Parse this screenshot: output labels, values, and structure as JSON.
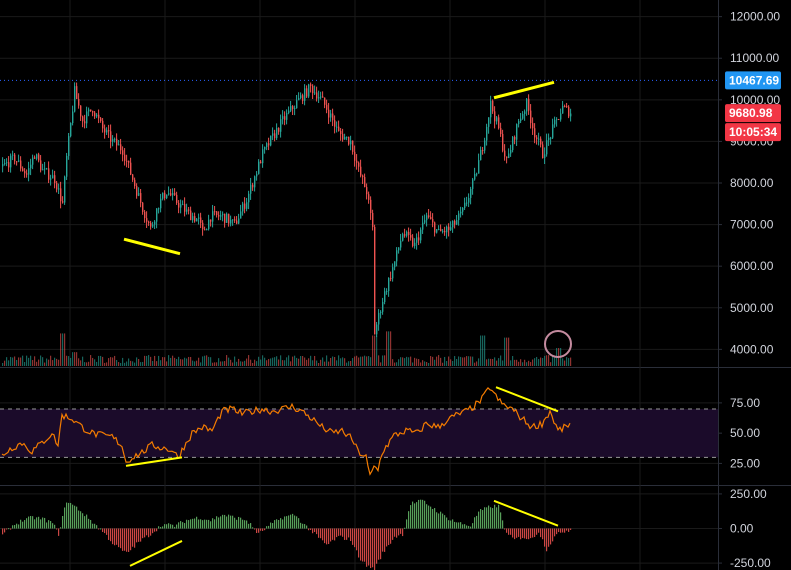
{
  "colors": {
    "background": "#000000",
    "grid": "#1a1a1a",
    "divider": "#2a2e39",
    "up": "#26a69a",
    "down": "#ef5350",
    "high_line": "#2962ff",
    "high_tag": "#2196f3",
    "price_tag": "#f23645",
    "rsi_line": "#f57c00",
    "rsi_band": "#1b0b2a",
    "rsi_guide": "#9a9a9a",
    "macd_up": "#66bb6a",
    "macd_down": "#ef5350",
    "annotation": "#ffff00",
    "circle": "#c48b9f",
    "axis_text": "#d1d4dc"
  },
  "price_tags": {
    "high": "10467.69",
    "last": "9680.98",
    "countdown": "10:05:34"
  },
  "chart_data": [
    {
      "type": "candlestick",
      "title": "",
      "ylim": [
        3600,
        12400
      ],
      "y_ticks": [
        "12000.00",
        "11000.00",
        "10000.00",
        "9000.00",
        "8000.00",
        "7000.00",
        "6000.00",
        "5000.00",
        "4000.00"
      ],
      "y_tick_values": [
        12000,
        11000,
        10000,
        9000,
        8000,
        7000,
        6000,
        5000,
        4000
      ],
      "high_marker": 10467.69,
      "last_price": 9680.98,
      "close_path": [
        [
          0,
          8400
        ],
        [
          6,
          8600
        ],
        [
          12,
          8200
        ],
        [
          16,
          8700
        ],
        [
          20,
          8300
        ],
        [
          26,
          8100
        ],
        [
          30,
          7500
        ],
        [
          32,
          8600
        ],
        [
          36,
          10200
        ],
        [
          40,
          9500
        ],
        [
          45,
          9800
        ],
        [
          50,
          9300
        ],
        [
          55,
          9000
        ],
        [
          60,
          8800
        ],
        [
          65,
          8100
        ],
        [
          70,
          7400
        ],
        [
          74,
          6900
        ],
        [
          78,
          7500
        ],
        [
          82,
          7800
        ],
        [
          88,
          7500
        ],
        [
          92,
          7300
        ],
        [
          98,
          7100
        ],
        [
          100,
          6800
        ],
        [
          104,
          7200
        ],
        [
          110,
          7200
        ],
        [
          116,
          7000
        ],
        [
          122,
          7600
        ],
        [
          130,
          8700
        ],
        [
          140,
          9500
        ],
        [
          148,
          10000
        ],
        [
          154,
          10300
        ],
        [
          158,
          10100
        ],
        [
          162,
          9800
        ],
        [
          168,
          9200
        ],
        [
          174,
          9000
        ],
        [
          178,
          8300
        ],
        [
          182,
          7800
        ],
        [
          185,
          6900
        ],
        [
          186,
          4400
        ],
        [
          190,
          5200
        ],
        [
          196,
          6100
        ],
        [
          200,
          6800
        ],
        [
          206,
          6500
        ],
        [
          212,
          7200
        ],
        [
          218,
          6800
        ],
        [
          224,
          6900
        ],
        [
          230,
          7300
        ],
        [
          236,
          8100
        ],
        [
          240,
          8900
        ],
        [
          244,
          9900
        ],
        [
          248,
          9300
        ],
        [
          252,
          8500
        ],
        [
          258,
          9500
        ],
        [
          262,
          9900
        ],
        [
          266,
          9200
        ],
        [
          270,
          8700
        ],
        [
          276,
          9400
        ],
        [
          280,
          9800
        ],
        [
          284,
          9700
        ]
      ],
      "volume_spikes": [
        [
          30,
          4550
        ],
        [
          36,
          4100
        ],
        [
          186,
          4500
        ],
        [
          193,
          4600
        ],
        [
          240,
          4500
        ],
        [
          252,
          4450
        ],
        [
          278,
          4200
        ]
      ],
      "volume_base": 4200,
      "annotations": [
        {
          "kind": "line",
          "from": [
            61,
            6650
          ],
          "to": [
            89,
            6300
          ]
        },
        {
          "kind": "line",
          "from": [
            246,
            10050
          ],
          "to": [
            276,
            10420
          ]
        },
        {
          "kind": "circle",
          "at": [
            278,
            4130
          ]
        }
      ]
    },
    {
      "type": "line",
      "title": "",
      "ylim": [
        8,
        103
      ],
      "y_ticks": [
        "75.00",
        "50.00",
        "25.00"
      ],
      "y_tick_values": [
        75,
        50,
        25
      ],
      "band": [
        30,
        70
      ],
      "values_path": [
        [
          0,
          32
        ],
        [
          5,
          38
        ],
        [
          10,
          42
        ],
        [
          15,
          35
        ],
        [
          20,
          42
        ],
        [
          25,
          50
        ],
        [
          28,
          40
        ],
        [
          30,
          65
        ],
        [
          35,
          62
        ],
        [
          40,
          55
        ],
        [
          45,
          50
        ],
        [
          50,
          48
        ],
        [
          55,
          47
        ],
        [
          60,
          40
        ],
        [
          62,
          26
        ],
        [
          65,
          30
        ],
        [
          70,
          34
        ],
        [
          75,
          40
        ],
        [
          80,
          38
        ],
        [
          85,
          36
        ],
        [
          88,
          30
        ],
        [
          90,
          36
        ],
        [
          95,
          50
        ],
        [
          100,
          55
        ],
        [
          105,
          52
        ],
        [
          110,
          68
        ],
        [
          115,
          70
        ],
        [
          120,
          66
        ],
        [
          130,
          70
        ],
        [
          135,
          68
        ],
        [
          140,
          70
        ],
        [
          145,
          72
        ],
        [
          150,
          68
        ],
        [
          155,
          62
        ],
        [
          160,
          55
        ],
        [
          165,
          50
        ],
        [
          170,
          52
        ],
        [
          175,
          45
        ],
        [
          178,
          35
        ],
        [
          182,
          30
        ],
        [
          184,
          14
        ],
        [
          186,
          22
        ],
        [
          188,
          20
        ],
        [
          190,
          34
        ],
        [
          196,
          48
        ],
        [
          202,
          52
        ],
        [
          208,
          50
        ],
        [
          212,
          58
        ],
        [
          218,
          55
        ],
        [
          222,
          60
        ],
        [
          226,
          64
        ],
        [
          232,
          68
        ],
        [
          236,
          72
        ],
        [
          240,
          78
        ],
        [
          244,
          88
        ],
        [
          247,
          80
        ],
        [
          250,
          74
        ],
        [
          255,
          70
        ],
        [
          260,
          62
        ],
        [
          265,
          55
        ],
        [
          270,
          58
        ],
        [
          274,
          68
        ],
        [
          278,
          52
        ],
        [
          282,
          55
        ],
        [
          284,
          58
        ]
      ],
      "annotations": [
        {
          "kind": "line",
          "from": [
            62,
            23
          ],
          "to": [
            90,
            30
          ]
        },
        {
          "kind": "line",
          "from": [
            247,
            88
          ],
          "to": [
            278,
            68
          ]
        }
      ]
    },
    {
      "type": "bar",
      "title": "",
      "ylim": [
        -300,
        300
      ],
      "y_ticks": [
        "250.00",
        "0.00",
        "-250.00"
      ],
      "y_tick_values": [
        250,
        0,
        -250
      ],
      "values_path": [
        [
          0,
          -50
        ],
        [
          5,
          20
        ],
        [
          10,
          60
        ],
        [
          15,
          80
        ],
        [
          20,
          70
        ],
        [
          25,
          40
        ],
        [
          28,
          -40
        ],
        [
          32,
          200
        ],
        [
          38,
          140
        ],
        [
          44,
          60
        ],
        [
          50,
          -20
        ],
        [
          56,
          -120
        ],
        [
          62,
          -180
        ],
        [
          68,
          -100
        ],
        [
          74,
          -40
        ],
        [
          80,
          30
        ],
        [
          86,
          20
        ],
        [
          92,
          60
        ],
        [
          98,
          80
        ],
        [
          104,
          60
        ],
        [
          110,
          100
        ],
        [
          116,
          80
        ],
        [
          122,
          60
        ],
        [
          128,
          -40
        ],
        [
          134,
          30
        ],
        [
          140,
          80
        ],
        [
          146,
          100
        ],
        [
          150,
          40
        ],
        [
          156,
          -40
        ],
        [
          162,
          -120
        ],
        [
          168,
          -60
        ],
        [
          174,
          -80
        ],
        [
          178,
          -200
        ],
        [
          182,
          -270
        ],
        [
          186,
          -290
        ],
        [
          190,
          -180
        ],
        [
          196,
          -60
        ],
        [
          200,
          -40
        ],
        [
          204,
          180
        ],
        [
          210,
          200
        ],
        [
          216,
          140
        ],
        [
          222,
          80
        ],
        [
          228,
          40
        ],
        [
          234,
          20
        ],
        [
          238,
          120
        ],
        [
          244,
          160
        ],
        [
          248,
          160
        ],
        [
          252,
          -40
        ],
        [
          256,
          -80
        ],
        [
          260,
          -60
        ],
        [
          264,
          -80
        ],
        [
          268,
          -20
        ],
        [
          272,
          -150
        ],
        [
          276,
          -60
        ],
        [
          280,
          -20
        ],
        [
          284,
          -10
        ]
      ],
      "annotations": [
        {
          "kind": "line",
          "from": [
            64,
            -270
          ],
          "to": [
            90,
            -90
          ]
        },
        {
          "kind": "line",
          "from": [
            246,
            200
          ],
          "to": [
            278,
            20
          ]
        }
      ]
    }
  ]
}
